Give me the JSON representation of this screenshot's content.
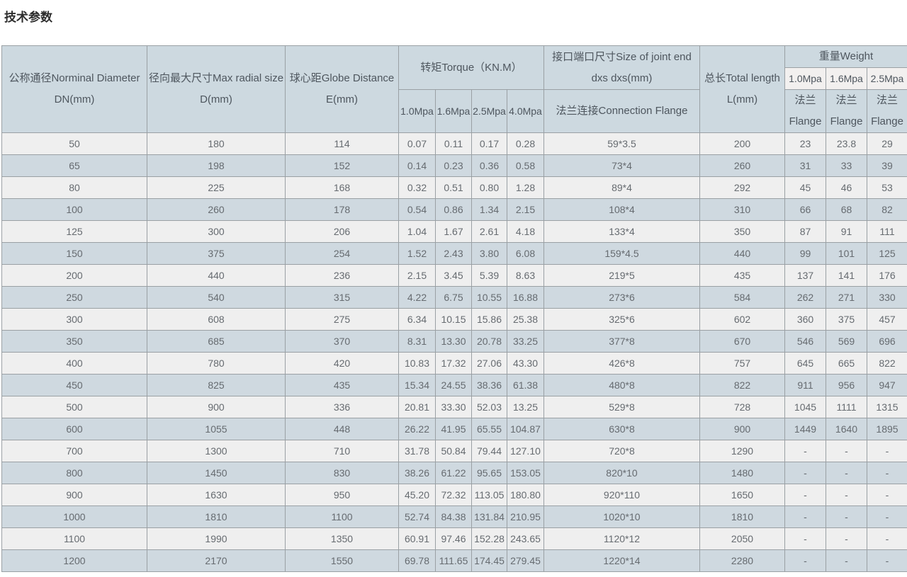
{
  "page_title": "技术参数",
  "colors": {
    "header_bg": "#cdd9e0",
    "row_blue": "#cfd9e0",
    "row_light": "#efefef",
    "subheader_white": "#f2f0ef",
    "border": "#9aa0a4",
    "header_text": "#4e565e",
    "data_text": "#666b70"
  },
  "table": {
    "header": {
      "nominal_diameter": {
        "line1": "公称通径Norminal Diameter",
        "line2": "DN(mm)"
      },
      "max_radial_size": {
        "line1": "径向最大尺寸Max radial size",
        "line2": "D(mm)"
      },
      "globe_distance": {
        "line1": "球心距Globe Distance",
        "line2": "E(mm)"
      },
      "torque": {
        "title": "转矩Torque（KN.M）",
        "sub": [
          "1.0Mpa",
          "1.6Mpa",
          "2.5Mpa",
          "4.0Mpa"
        ]
      },
      "joint_end": {
        "line1": "接口端口尺寸Size of joint end",
        "line2": "dxs dxs(mm)",
        "sub": "法兰连接Connection Flange"
      },
      "total_length": {
        "line1": "总长Total length",
        "line2": "L(mm)"
      },
      "weight": {
        "title": "重量Weight",
        "sub": [
          "1.0Mpa",
          "1.6Mpa",
          "2.5Mpa"
        ],
        "flange_line1": "法兰",
        "flange_line2": "Flange"
      }
    },
    "rows": [
      [
        "50",
        "180",
        "114",
        "0.07",
        "0.11",
        "0.17",
        "0.28",
        "59*3.5",
        "200",
        "23",
        "23.8",
        "29"
      ],
      [
        "65",
        "198",
        "152",
        "0.14",
        "0.23",
        "0.36",
        "0.58",
        "73*4",
        "260",
        "31",
        "33",
        "39"
      ],
      [
        "80",
        "225",
        "168",
        "0.32",
        "0.51",
        "0.80",
        "1.28",
        "89*4",
        "292",
        "45",
        "46",
        "53"
      ],
      [
        "100",
        "260",
        "178",
        "0.54",
        "0.86",
        "1.34",
        "2.15",
        "108*4",
        "310",
        "66",
        "68",
        "82"
      ],
      [
        "125",
        "300",
        "206",
        "1.04",
        "1.67",
        "2.61",
        "4.18",
        "133*4",
        "350",
        "87",
        "91",
        "111"
      ],
      [
        "150",
        "375",
        "254",
        "1.52",
        "2.43",
        "3.80",
        "6.08",
        "159*4.5",
        "440",
        "99",
        "101",
        "125"
      ],
      [
        "200",
        "440",
        "236",
        "2.15",
        "3.45",
        "5.39",
        "8.63",
        "219*5",
        "435",
        "137",
        "141",
        "176"
      ],
      [
        "250",
        "540",
        "315",
        "4.22",
        "6.75",
        "10.55",
        "16.88",
        "273*6",
        "584",
        "262",
        "271",
        "330"
      ],
      [
        "300",
        "608",
        "275",
        "6.34",
        "10.15",
        "15.86",
        "25.38",
        "325*6",
        "602",
        "360",
        "375",
        "457"
      ],
      [
        "350",
        "685",
        "370",
        "8.31",
        "13.30",
        "20.78",
        "33.25",
        "377*8",
        "670",
        "546",
        "569",
        "696"
      ],
      [
        "400",
        "780",
        "420",
        "10.83",
        "17.32",
        "27.06",
        "43.30",
        "426*8",
        "757",
        "645",
        "665",
        "822"
      ],
      [
        "450",
        "825",
        "435",
        "15.34",
        "24.55",
        "38.36",
        "61.38",
        "480*8",
        "822",
        "911",
        "956",
        "947"
      ],
      [
        "500",
        "900",
        "336",
        "20.81",
        "33.30",
        "52.03",
        "13.25",
        "529*8",
        "728",
        "1045",
        "1111",
        "1315"
      ],
      [
        "600",
        "1055",
        "448",
        "26.22",
        "41.95",
        "65.55",
        "104.87",
        "630*8",
        "900",
        "1449",
        "1640",
        "1895"
      ],
      [
        "700",
        "1300",
        "710",
        "31.78",
        "50.84",
        "79.44",
        "127.10",
        "720*8",
        "1290",
        "-",
        "-",
        "-"
      ],
      [
        "800",
        "1450",
        "830",
        "38.26",
        "61.22",
        "95.65",
        "153.05",
        "820*10",
        "1480",
        "-",
        "-",
        "-"
      ],
      [
        "900",
        "1630",
        "950",
        "45.20",
        "72.32",
        "113.05",
        "180.80",
        "920*110",
        "1650",
        "-",
        "-",
        "-"
      ],
      [
        "1000",
        "1810",
        "1100",
        "52.74",
        "84.38",
        "131.84",
        "210.95",
        "1020*10",
        "1810",
        "-",
        "-",
        "-"
      ],
      [
        "1100",
        "1990",
        "1350",
        "60.91",
        "97.46",
        "152.28",
        "243.65",
        "1120*12",
        "2050",
        "-",
        "-",
        "-"
      ],
      [
        "1200",
        "2170",
        "1550",
        "69.78",
        "111.65",
        "174.45",
        "279.45",
        "1220*14",
        "2280",
        "-",
        "-",
        "-"
      ]
    ]
  }
}
